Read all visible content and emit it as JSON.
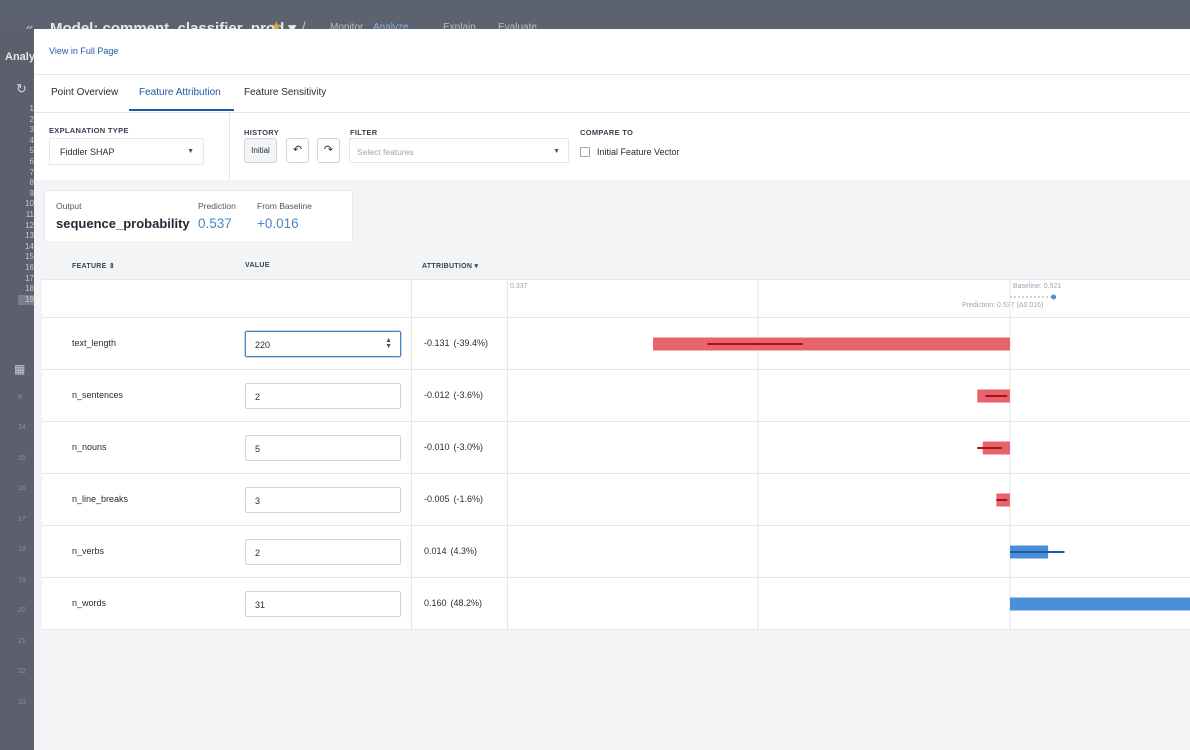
{
  "background_app": {
    "model_title": "Model: comment_classifier_prod ▾",
    "nav_tabs": [
      "Monitor",
      "Analyze",
      "Explain",
      "Evaluate"
    ],
    "sidebar_label": "Analy",
    "row_numbers": [
      "1",
      "2",
      "3",
      "4",
      "5",
      "6",
      "7",
      "8",
      "9",
      "10",
      "11",
      "12",
      "13",
      "14",
      "15",
      "16",
      "17",
      "18",
      "19"
    ],
    "lower_numbers": [
      "14",
      "15",
      "16",
      "17",
      "18",
      "19",
      "20",
      "21",
      "22",
      "23"
    ]
  },
  "panel": {
    "top_link": "View in Full Page",
    "tabs": [
      "Point Overview",
      "Feature Attribution",
      "Feature Sensitivity"
    ],
    "active_tab": "Feature Attribution"
  },
  "controls": {
    "explanation_type_label": "EXPLANATION TYPE",
    "explanation_type_value": "Fiddler SHAP",
    "history_label": "HISTORY",
    "history_initial": "Initial",
    "filter_label": "FILTER",
    "filter_placeholder": "Select features",
    "compare_label": "COMPARE TO",
    "compare_option": "Initial Feature Vector"
  },
  "summary": {
    "output_label": "Output",
    "output_value": "sequence_probability",
    "prediction_label": "Prediction",
    "prediction_value": "0.537",
    "baseline_label": "From Baseline",
    "baseline_value": "+0.016"
  },
  "table": {
    "headers": {
      "feature": "FEATURE ⇕",
      "value": "VALUE",
      "attribution": "ATTRIBUTION ▾"
    },
    "axis": {
      "left_tick": "0.337",
      "baseline": "Baseline: 0.521",
      "prediction": "Prediction: 0.537 (Δ0.016)"
    },
    "rows": [
      {
        "feature": "text_length",
        "value": "220",
        "attribution": "-0.131",
        "percent": "(-39.4%)"
      },
      {
        "feature": "n_sentences",
        "value": "2",
        "attribution": "-0.012",
        "percent": "(-3.6%)"
      },
      {
        "feature": "n_nouns",
        "value": "5",
        "attribution": "-0.010",
        "percent": "(-3.0%)"
      },
      {
        "feature": "n_line_breaks",
        "value": "3",
        "attribution": "-0.005",
        "percent": "(-1.6%)"
      },
      {
        "feature": "n_verbs",
        "value": "2",
        "attribution": "0.014",
        "percent": "(4.3%)"
      },
      {
        "feature": "n_words",
        "value": "31",
        "attribution": "0.160",
        "percent": "(48.2%)"
      }
    ]
  },
  "chart_data": {
    "type": "bar",
    "baseline": 0.521,
    "prediction": 0.537,
    "categories": [
      "text_length",
      "n_sentences",
      "n_nouns",
      "n_line_breaks",
      "n_verbs",
      "n_words"
    ],
    "values": [
      -0.131,
      -0.012,
      -0.01,
      -0.005,
      0.014,
      0.16
    ],
    "error_ranges": [
      [
        -0.111,
        -0.076
      ],
      [
        -0.009,
        -0.001
      ],
      [
        -0.012,
        -0.003
      ],
      [
        -0.005,
        -0.001
      ],
      [
        0.0,
        0.02
      ],
      null
    ],
    "xlim_left": 0.337,
    "colors": {
      "negative": "#e9636c",
      "negative_line": "#a3121c",
      "positive": "#4a90d9",
      "positive_line": "#1f5aa6"
    }
  }
}
